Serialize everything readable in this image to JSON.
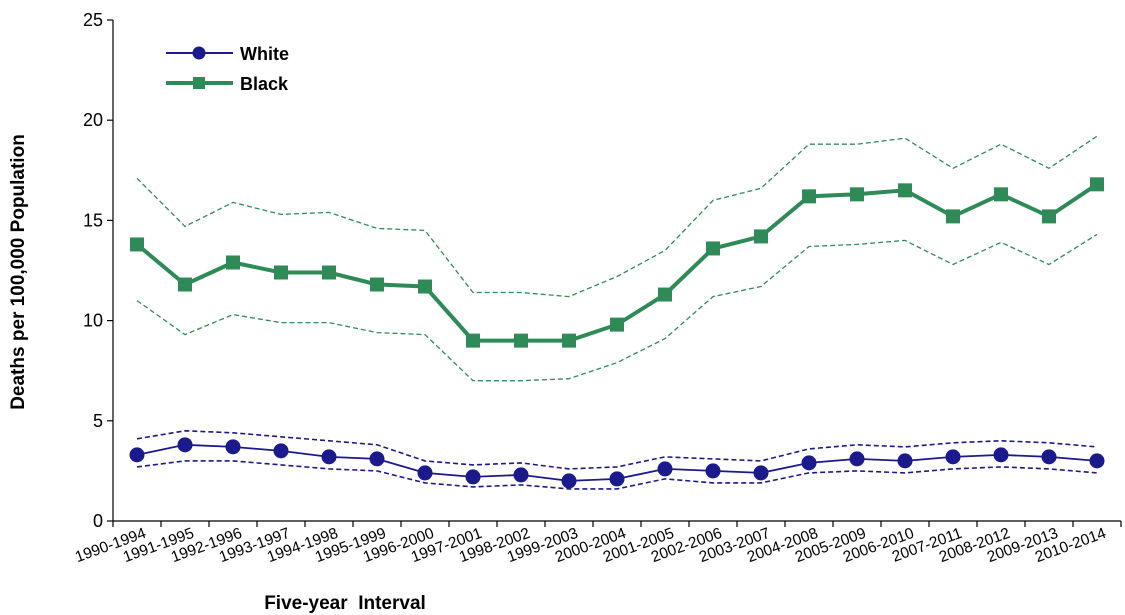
{
  "chart_data": {
    "type": "line",
    "title": "",
    "xlabel": "Five-year  Interval",
    "ylabel": "Deaths per 100,000 Population",
    "ylim": [
      0,
      25
    ],
    "yticks": [
      0,
      5,
      10,
      15,
      20,
      25
    ],
    "ytick_labels": [
      "0",
      "5",
      "10",
      "15",
      "20",
      "25"
    ],
    "grid": false,
    "legend_position": "top-left",
    "categories": [
      "1990-1994",
      "1991-1995",
      "1992-1996",
      "1993-1997",
      "1994-1998",
      "1995-1999",
      "1996-2000",
      "1997-2001",
      "1998-2002",
      "1999-2003",
      "2000-2004",
      "2001-2005",
      "2002-2006",
      "2003-2007",
      "2004-2008",
      "2005-2009",
      "2006-2010",
      "2007-2011",
      "2008-2012",
      "2009-2013",
      "2010-2014"
    ],
    "series": [
      {
        "name": "White",
        "color": "#1a1a8c",
        "marker": "circle",
        "values": [
          3.3,
          3.8,
          3.7,
          3.5,
          3.2,
          3.1,
          2.4,
          2.2,
          2.3,
          2.0,
          2.1,
          2.6,
          2.5,
          2.4,
          2.9,
          3.1,
          3.0,
          3.2,
          3.3,
          3.2,
          3.0
        ],
        "upper": [
          4.1,
          4.5,
          4.4,
          4.2,
          4.0,
          3.8,
          3.0,
          2.8,
          2.9,
          2.6,
          2.7,
          3.2,
          3.1,
          3.0,
          3.6,
          3.8,
          3.7,
          3.9,
          4.0,
          3.9,
          3.7
        ],
        "lower": [
          2.7,
          3.0,
          3.0,
          2.8,
          2.6,
          2.5,
          1.9,
          1.7,
          1.8,
          1.6,
          1.6,
          2.1,
          1.9,
          1.9,
          2.4,
          2.5,
          2.4,
          2.6,
          2.7,
          2.6,
          2.4
        ]
      },
      {
        "name": "Black",
        "color": "#2e8b57",
        "marker": "square",
        "values": [
          13.8,
          11.8,
          12.9,
          12.4,
          12.4,
          11.8,
          11.7,
          9.0,
          9.0,
          9.0,
          9.8,
          11.3,
          13.6,
          14.2,
          16.2,
          16.3,
          16.5,
          15.2,
          16.3,
          15.2,
          16.8
        ],
        "upper": [
          17.1,
          14.7,
          15.9,
          15.3,
          15.4,
          14.6,
          14.5,
          11.4,
          11.4,
          11.2,
          12.2,
          13.5,
          16.0,
          16.6,
          18.8,
          18.8,
          19.1,
          17.6,
          18.8,
          17.6,
          19.2
        ],
        "lower": [
          11.0,
          9.3,
          10.3,
          9.9,
          9.9,
          9.4,
          9.3,
          7.0,
          7.0,
          7.1,
          7.9,
          9.1,
          11.2,
          11.7,
          13.7,
          13.8,
          14.0,
          12.8,
          13.9,
          12.8,
          14.3
        ]
      }
    ]
  }
}
